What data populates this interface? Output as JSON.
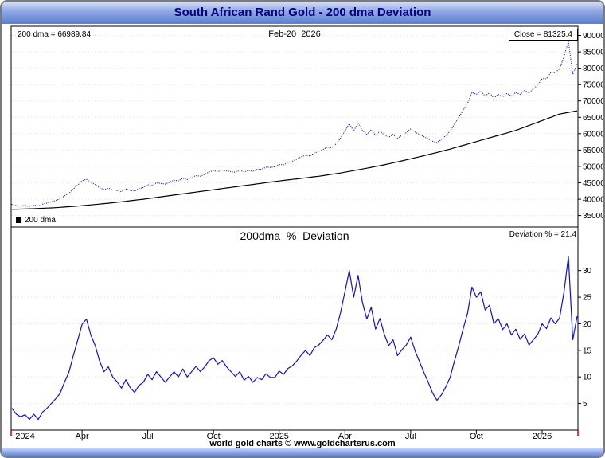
{
  "window": {
    "title": "South African Rand Gold - 200 dma Deviation",
    "footer_credit": "world gold charts © www.goldchartsrus.com"
  },
  "colors": {
    "title_text": "#000080",
    "header_gradient_top": "#d7e0f5",
    "header_gradient_bottom": "#5f80d2",
    "price_line": "#2222bb",
    "dma_line": "#000000",
    "deviation_line": "#1111cc",
    "grid": "#dcdcdc",
    "frame": "#000000",
    "axis_tick_red": "#c00000"
  },
  "chart_data": {
    "type": "line",
    "x_range": "Jan-2024 to Feb-20-2026, weekly samples",
    "x_ticks": [
      {
        "label": "2024",
        "index": 3
      },
      {
        "label": "Apr",
        "index": 16
      },
      {
        "label": "Jul",
        "index": 31
      },
      {
        "label": "Oct",
        "index": 46
      },
      {
        "label": "2025",
        "index": 61
      },
      {
        "label": "Apr",
        "index": 76
      },
      {
        "label": "Jul",
        "index": 91
      },
      {
        "label": "Oct",
        "index": 106
      },
      {
        "label": "2026",
        "index": 121
      }
    ],
    "panels": [
      {
        "name": "price",
        "annotations": {
          "left": "200 dma = 66989.84",
          "center": "Feb-20  2026",
          "right": "Close = 81325.4"
        },
        "legend": "200 dma",
        "ylim": [
          31500,
          92800
        ],
        "y_ticks": [
          35000,
          40000,
          45000,
          50000,
          55000,
          60000,
          65000,
          70000,
          75000,
          80000,
          85000,
          90000
        ],
        "series": [
          {
            "name": "ZAR gold price",
            "style": "dotted",
            "color": "#2222bb",
            "values": [
              38400,
              38050,
              37900,
              38100,
              37800,
              38200,
              37900,
              38500,
              38800,
              39200,
              39600,
              40100,
              41000,
              41800,
              43100,
              44300,
              45600,
              46100,
              45100,
              44500,
              43500,
              42900,
              43400,
              42800,
              42600,
              42300,
              43100,
              42700,
              42500,
              43200,
              43600,
              44400,
              44200,
              45000,
              44800,
              44600,
              45200,
              45800,
              45600,
              46400,
              46000,
              46600,
              47200,
              47000,
              47600,
              48300,
              48700,
              48400,
              48900,
              48600,
              48400,
              48200,
              48800,
              48300,
              48800,
              48500,
              49100,
              49100,
              49800,
              49700,
              49900,
              50600,
              50500,
              51200,
              51600,
              52200,
              52900,
              53500,
              53200,
              54100,
              54500,
              55200,
              55900,
              55700,
              56900,
              58600,
              60800,
              63000,
              60900,
              63200,
              61000,
              59800,
              61200,
              59500,
              60800,
              59600,
              58900,
              59800,
              58600,
              59500,
              60300,
              61500,
              60500,
              59800,
              59100,
              58400,
              57700,
              57300,
              58200,
              59400,
              60800,
              62900,
              65000,
              67200,
              69300,
              72600,
              72000,
              73000,
              71500,
              72500,
              70900,
              72000,
              71200,
              72300,
              71500,
              72600,
              72000,
              73200,
              72500,
              73700,
              74900,
              76800,
              76800,
              78700,
              78600,
              79900,
              83500,
              88200,
              78100,
              81325.4
            ]
          },
          {
            "name": "200 dma",
            "style": "solid",
            "color": "#000000",
            "values": [
              36900,
              36940,
              36980,
              37020,
              37060,
              37100,
              37160,
              37220,
              37280,
              37340,
              37400,
              37500,
              37600,
              37700,
              37800,
              37900,
              38020,
              38140,
              38260,
              38380,
              38500,
              38640,
              38780,
              38920,
              39060,
              39200,
              39360,
              39520,
              39680,
              39840,
              40000,
              40180,
              40360,
              40540,
              40720,
              40900,
              41080,
              41260,
              41440,
              41620,
              41800,
              41980,
              42160,
              42340,
              42520,
              42700,
              42880,
              43060,
              43240,
              43420,
              43600,
              43780,
              43960,
              44140,
              44320,
              44500,
              44680,
              44860,
              45040,
              45220,
              45400,
              45560,
              45720,
              45880,
              46040,
              46200,
              46360,
              46520,
              46680,
              46840,
              47000,
              47200,
              47400,
              47600,
              47800,
              48000,
              48240,
              48480,
              48720,
              48960,
              49200,
              49460,
              49720,
              49980,
              50240,
              50500,
              50800,
              51100,
              51400,
              51700,
              52000,
              52320,
              52640,
              52960,
              53280,
              53600,
              53940,
              54280,
              54620,
              54960,
              55300,
              55680,
              56060,
              56440,
              56820,
              57200,
              57580,
              57960,
              58340,
              58720,
              59100,
              59480,
              59860,
              60240,
              60620,
              61000,
              61500,
              62000,
              62500,
              63000,
              63500,
              64000,
              64500,
              65000,
              65500,
              66000,
              66250,
              66500,
              66750,
              66989.84
            ]
          }
        ]
      },
      {
        "name": "deviation",
        "title": "200dma  %  Deviation",
        "annotation_right": "Deviation % = 21.4",
        "ylim": [
          0,
          38.2
        ],
        "y_ticks": [
          5,
          10,
          15,
          20,
          25,
          30
        ],
        "series": [
          {
            "name": "deviation percent",
            "style": "solid",
            "color": "#1111cc",
            "values": [
              4.1,
              3.0,
              2.5,
              2.9,
              2.0,
              3.0,
              2.0,
              3.4,
              4.1,
              5.0,
              5.9,
              6.9,
              9.0,
              10.9,
              14.0,
              16.9,
              19.9,
              20.9,
              17.9,
              15.9,
              13.0,
              11.0,
              11.9,
              10.0,
              9.1,
              7.9,
              9.5,
              8.0,
              7.1,
              8.4,
              9.0,
              10.5,
              9.5,
              11.0,
              10.0,
              9.0,
              10.0,
              11.0,
              10.0,
              11.5,
              10.0,
              11.0,
              12.0,
              11.0,
              11.9,
              13.1,
              13.6,
              12.4,
              13.1,
              11.9,
              11.0,
              10.1,
              11.0,
              9.4,
              10.1,
              9.0,
              9.9,
              9.5,
              10.6,
              9.9,
              9.9,
              11.1,
              10.5,
              11.6,
              12.1,
              13.0,
              14.1,
              15.0,
              14.0,
              15.5,
              16.0,
              16.9,
              17.9,
              17.0,
              19.0,
              22.1,
              26.0,
              30.0,
              25.0,
              29.1,
              24.0,
              20.9,
              23.1,
              19.0,
              21.0,
              18.0,
              15.9,
              17.0,
              14.0,
              15.1,
              16.0,
              17.5,
              14.9,
              12.9,
              10.9,
              9.0,
              7.0,
              5.6,
              6.6,
              8.1,
              9.9,
              13.0,
              15.9,
              19.1,
              22.0,
              26.9,
              25.0,
              26.0,
              22.6,
              23.5,
              20.0,
              21.0,
              18.9,
              20.0,
              17.9,
              19.0,
              17.1,
              18.1,
              16.0,
              17.0,
              18.0,
              20.0,
              19.1,
              21.1,
              20.0,
              21.1,
              26.0,
              32.6,
              17.0,
              21.4
            ]
          }
        ]
      }
    ]
  }
}
